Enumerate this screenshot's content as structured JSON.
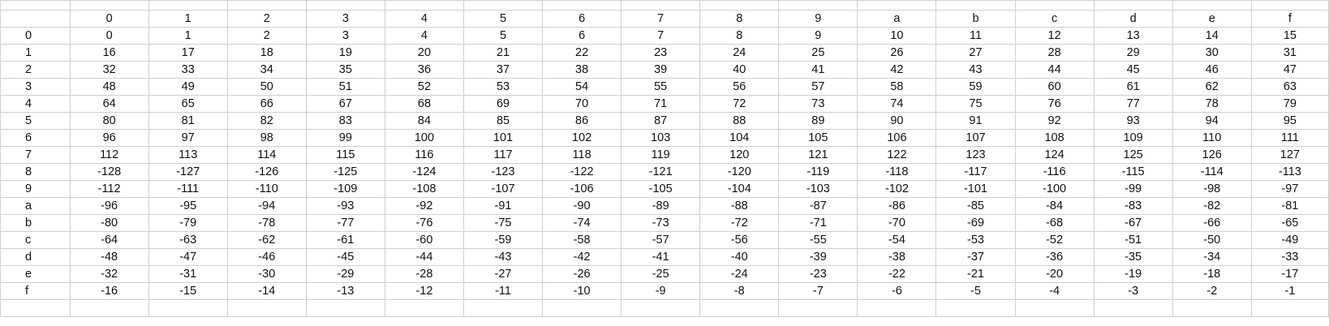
{
  "header_row": [
    "",
    "0",
    "1",
    "2",
    "3",
    "4",
    "5",
    "6",
    "7",
    "8",
    "9",
    "a",
    "b",
    "c",
    "d",
    "e",
    "f"
  ],
  "rows": [
    {
      "label": "0",
      "cells": [
        "0",
        "1",
        "2",
        "3",
        "4",
        "5",
        "6",
        "7",
        "8",
        "9",
        "10",
        "11",
        "12",
        "13",
        "14",
        "15"
      ]
    },
    {
      "label": "1",
      "cells": [
        "16",
        "17",
        "18",
        "19",
        "20",
        "21",
        "22",
        "23",
        "24",
        "25",
        "26",
        "27",
        "28",
        "29",
        "30",
        "31"
      ]
    },
    {
      "label": "2",
      "cells": [
        "32",
        "33",
        "34",
        "35",
        "36",
        "37",
        "38",
        "39",
        "40",
        "41",
        "42",
        "43",
        "44",
        "45",
        "46",
        "47"
      ]
    },
    {
      "label": "3",
      "cells": [
        "48",
        "49",
        "50",
        "51",
        "52",
        "53",
        "54",
        "55",
        "56",
        "57",
        "58",
        "59",
        "60",
        "61",
        "62",
        "63"
      ]
    },
    {
      "label": "4",
      "cells": [
        "64",
        "65",
        "66",
        "67",
        "68",
        "69",
        "70",
        "71",
        "72",
        "73",
        "74",
        "75",
        "76",
        "77",
        "78",
        "79"
      ]
    },
    {
      "label": "5",
      "cells": [
        "80",
        "81",
        "82",
        "83",
        "84",
        "85",
        "86",
        "87",
        "88",
        "89",
        "90",
        "91",
        "92",
        "93",
        "94",
        "95"
      ]
    },
    {
      "label": "6",
      "cells": [
        "96",
        "97",
        "98",
        "99",
        "100",
        "101",
        "102",
        "103",
        "104",
        "105",
        "106",
        "107",
        "108",
        "109",
        "110",
        "111"
      ]
    },
    {
      "label": "7",
      "cells": [
        "112",
        "113",
        "114",
        "115",
        "116",
        "117",
        "118",
        "119",
        "120",
        "121",
        "122",
        "123",
        "124",
        "125",
        "126",
        "127"
      ]
    },
    {
      "label": "8",
      "cells": [
        "-128",
        "-127",
        "-126",
        "-125",
        "-124",
        "-123",
        "-122",
        "-121",
        "-120",
        "-119",
        "-118",
        "-117",
        "-116",
        "-115",
        "-114",
        "-113"
      ]
    },
    {
      "label": "9",
      "cells": [
        "-112",
        "-111",
        "-110",
        "-109",
        "-108",
        "-107",
        "-106",
        "-105",
        "-104",
        "-103",
        "-102",
        "-101",
        "-100",
        "-99",
        "-98",
        "-97"
      ]
    },
    {
      "label": "a",
      "cells": [
        "-96",
        "-95",
        "-94",
        "-93",
        "-92",
        "-91",
        "-90",
        "-89",
        "-88",
        "-87",
        "-86",
        "-85",
        "-84",
        "-83",
        "-82",
        "-81"
      ]
    },
    {
      "label": "b",
      "cells": [
        "-80",
        "-79",
        "-78",
        "-77",
        "-76",
        "-75",
        "-74",
        "-73",
        "-72",
        "-71",
        "-70",
        "-69",
        "-68",
        "-67",
        "-66",
        "-65"
      ]
    },
    {
      "label": "c",
      "cells": [
        "-64",
        "-63",
        "-62",
        "-61",
        "-60",
        "-59",
        "-58",
        "-57",
        "-56",
        "-55",
        "-54",
        "-53",
        "-52",
        "-51",
        "-50",
        "-49"
      ]
    },
    {
      "label": "d",
      "cells": [
        "-48",
        "-47",
        "-46",
        "-45",
        "-44",
        "-43",
        "-42",
        "-41",
        "-40",
        "-39",
        "-38",
        "-37",
        "-36",
        "-35",
        "-34",
        "-33"
      ]
    },
    {
      "label": "e",
      "cells": [
        "-32",
        "-31",
        "-30",
        "-29",
        "-28",
        "-27",
        "-26",
        "-25",
        "-24",
        "-23",
        "-22",
        "-21",
        "-20",
        "-19",
        "-18",
        "-17"
      ]
    },
    {
      "label": "f",
      "cells": [
        "-16",
        "-15",
        "-14",
        "-13",
        "-12",
        "-11",
        "-10",
        "-9",
        "-8",
        "-7",
        "-6",
        "-5",
        "-4",
        "-3",
        "-2",
        "-1"
      ]
    }
  ],
  "colors": {
    "grid_line": "#cfcfcf",
    "text": "#111111",
    "background": "#ffffff"
  }
}
